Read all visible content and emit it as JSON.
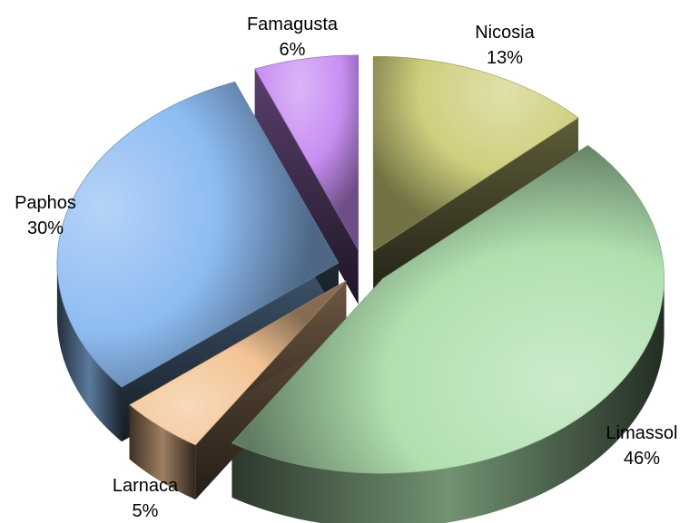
{
  "chart_data": {
    "type": "pie",
    "style": "3d-exploded",
    "legend": "none",
    "slices": [
      {
        "name": "Nicosia",
        "percent": "13%",
        "value": 13,
        "color": "#cfcf7e"
      },
      {
        "name": "Limassol",
        "percent": "46%",
        "value": 46,
        "color": "#b0e0b0"
      },
      {
        "name": "Larnaca",
        "percent": "5%",
        "value": 5,
        "color": "#f3c495"
      },
      {
        "name": "Paphos",
        "percent": "30%",
        "value": 30,
        "color": "#8dbcf2"
      },
      {
        "name": "Famagusta",
        "percent": "6%",
        "value": 6,
        "color": "#c88ef2"
      }
    ]
  }
}
